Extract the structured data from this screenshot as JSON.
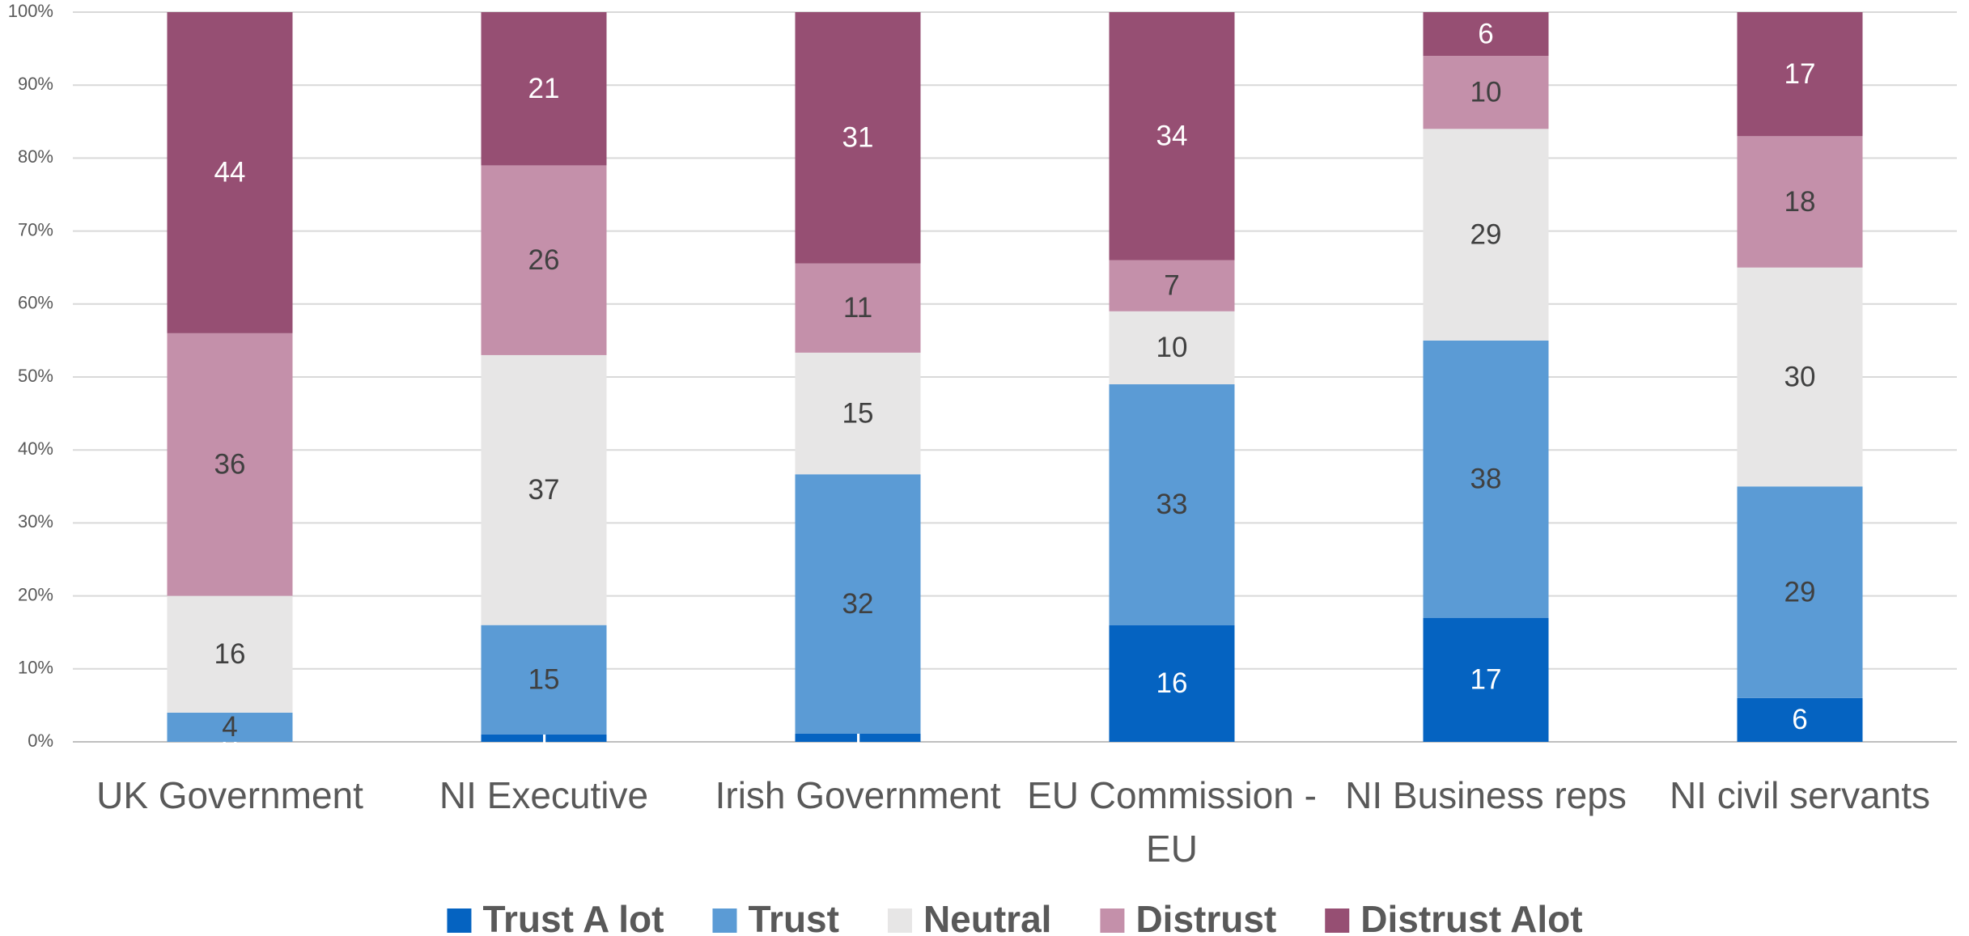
{
  "chart_data": {
    "type": "stacked_bar_100",
    "categories": [
      "UK Government",
      "NI Executive",
      "Irish Government",
      "EU Commission - EU",
      "NI Business reps",
      "NI civil servants"
    ],
    "series": [
      {
        "name": "Trust A lot",
        "color": "#0563c1",
        "values": [
          0,
          1,
          1,
          16,
          17,
          6
        ]
      },
      {
        "name": "Trust",
        "color": "#5b9bd5",
        "values": [
          4,
          15,
          32,
          33,
          38,
          29
        ]
      },
      {
        "name": "Neutral",
        "color": "#e7e6e6",
        "values": [
          16,
          37,
          15,
          10,
          29,
          30
        ]
      },
      {
        "name": "Distrust",
        "color": "#c490aa",
        "values": [
          36,
          26,
          11,
          7,
          10,
          18
        ]
      },
      {
        "name": "Distrust Alot",
        "color": "#964f73",
        "values": [
          44,
          21,
          31,
          34,
          6,
          17
        ]
      }
    ],
    "ylim": [
      0,
      100
    ],
    "yticks": [
      {
        "value": 0,
        "label": "0%"
      },
      {
        "value": 10,
        "label": "10%"
      },
      {
        "value": 20,
        "label": "20%"
      },
      {
        "value": 30,
        "label": "30%"
      },
      {
        "value": 40,
        "label": "40%"
      },
      {
        "value": 50,
        "label": "50%"
      },
      {
        "value": 60,
        "label": "60%"
      },
      {
        "value": 70,
        "label": "70%"
      },
      {
        "value": 80,
        "label": "80%"
      },
      {
        "value": 90,
        "label": "90%"
      },
      {
        "value": 100,
        "label": "100%"
      }
    ],
    "grid": true,
    "legend": "bottom"
  }
}
